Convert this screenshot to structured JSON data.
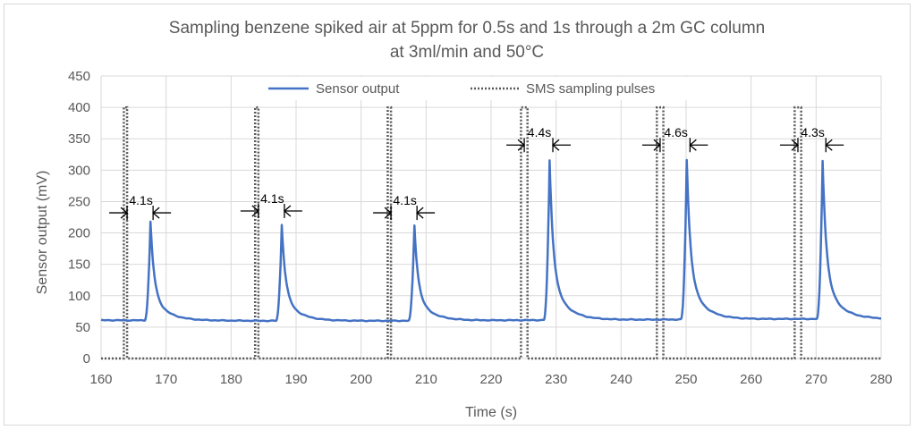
{
  "chart_data": {
    "type": "line",
    "title_lines": [
      "Sampling benzene spiked air at 5ppm for 0.5s and 1s through a 2m GC column",
      "at 3ml/min and 50°C"
    ],
    "xlabel": "Time (s)",
    "ylabel": "Sensor output (mV)",
    "xlim": [
      160,
      280
    ],
    "ylim": [
      0,
      450
    ],
    "x_ticks": [
      160,
      170,
      180,
      190,
      200,
      210,
      220,
      230,
      240,
      250,
      260,
      270,
      280
    ],
    "y_ticks": [
      0,
      50,
      100,
      150,
      200,
      250,
      300,
      350,
      400,
      450
    ],
    "grid": true,
    "legend_position": "top-center",
    "series": [
      {
        "name": "Sensor output",
        "style": "solid",
        "color": "#4472c4",
        "baseline": [
          {
            "x": 160,
            "y": 61
          },
          {
            "x": 185,
            "y": 60
          },
          {
            "x": 205,
            "y": 60
          },
          {
            "x": 225,
            "y": 61
          },
          {
            "x": 246,
            "y": 62
          },
          {
            "x": 266,
            "y": 63
          },
          {
            "x": 280,
            "y": 63
          }
        ],
        "peaks": [
          {
            "x": 167.6,
            "height": 218,
            "base": 61
          },
          {
            "x": 187.8,
            "height": 213,
            "base": 60
          },
          {
            "x": 208.2,
            "height": 212,
            "base": 60
          },
          {
            "x": 229.0,
            "height": 316,
            "base": 62
          },
          {
            "x": 250.1,
            "height": 317,
            "base": 63
          },
          {
            "x": 271.0,
            "height": 316,
            "base": 64
          }
        ]
      },
      {
        "name": "SMS sampling pulses",
        "style": "dotted",
        "color": "#595959",
        "pulses": [
          {
            "start": 163.5,
            "end": 164.0,
            "height": 400
          },
          {
            "start": 183.7,
            "end": 184.2,
            "height": 400
          },
          {
            "start": 204.1,
            "end": 204.6,
            "height": 400
          },
          {
            "start": 224.6,
            "end": 225.6,
            "height": 400
          },
          {
            "start": 245.5,
            "end": 246.5,
            "height": 400
          },
          {
            "start": 266.7,
            "end": 267.7,
            "height": 400
          }
        ]
      }
    ],
    "annotations": [
      {
        "label": "4.1s",
        "x1": 164.0,
        "x2": 168.0,
        "y": 232
      },
      {
        "label": "4.1s",
        "x1": 184.2,
        "x2": 188.2,
        "y": 235
      },
      {
        "label": "4.1s",
        "x1": 204.6,
        "x2": 208.6,
        "y": 232
      },
      {
        "label": "4.4s",
        "x1": 225.1,
        "x2": 229.5,
        "y": 340
      },
      {
        "label": "4.6s",
        "x1": 246.0,
        "x2": 250.6,
        "y": 340
      },
      {
        "label": "4.3s",
        "x1": 267.2,
        "x2": 271.5,
        "y": 340
      }
    ]
  }
}
